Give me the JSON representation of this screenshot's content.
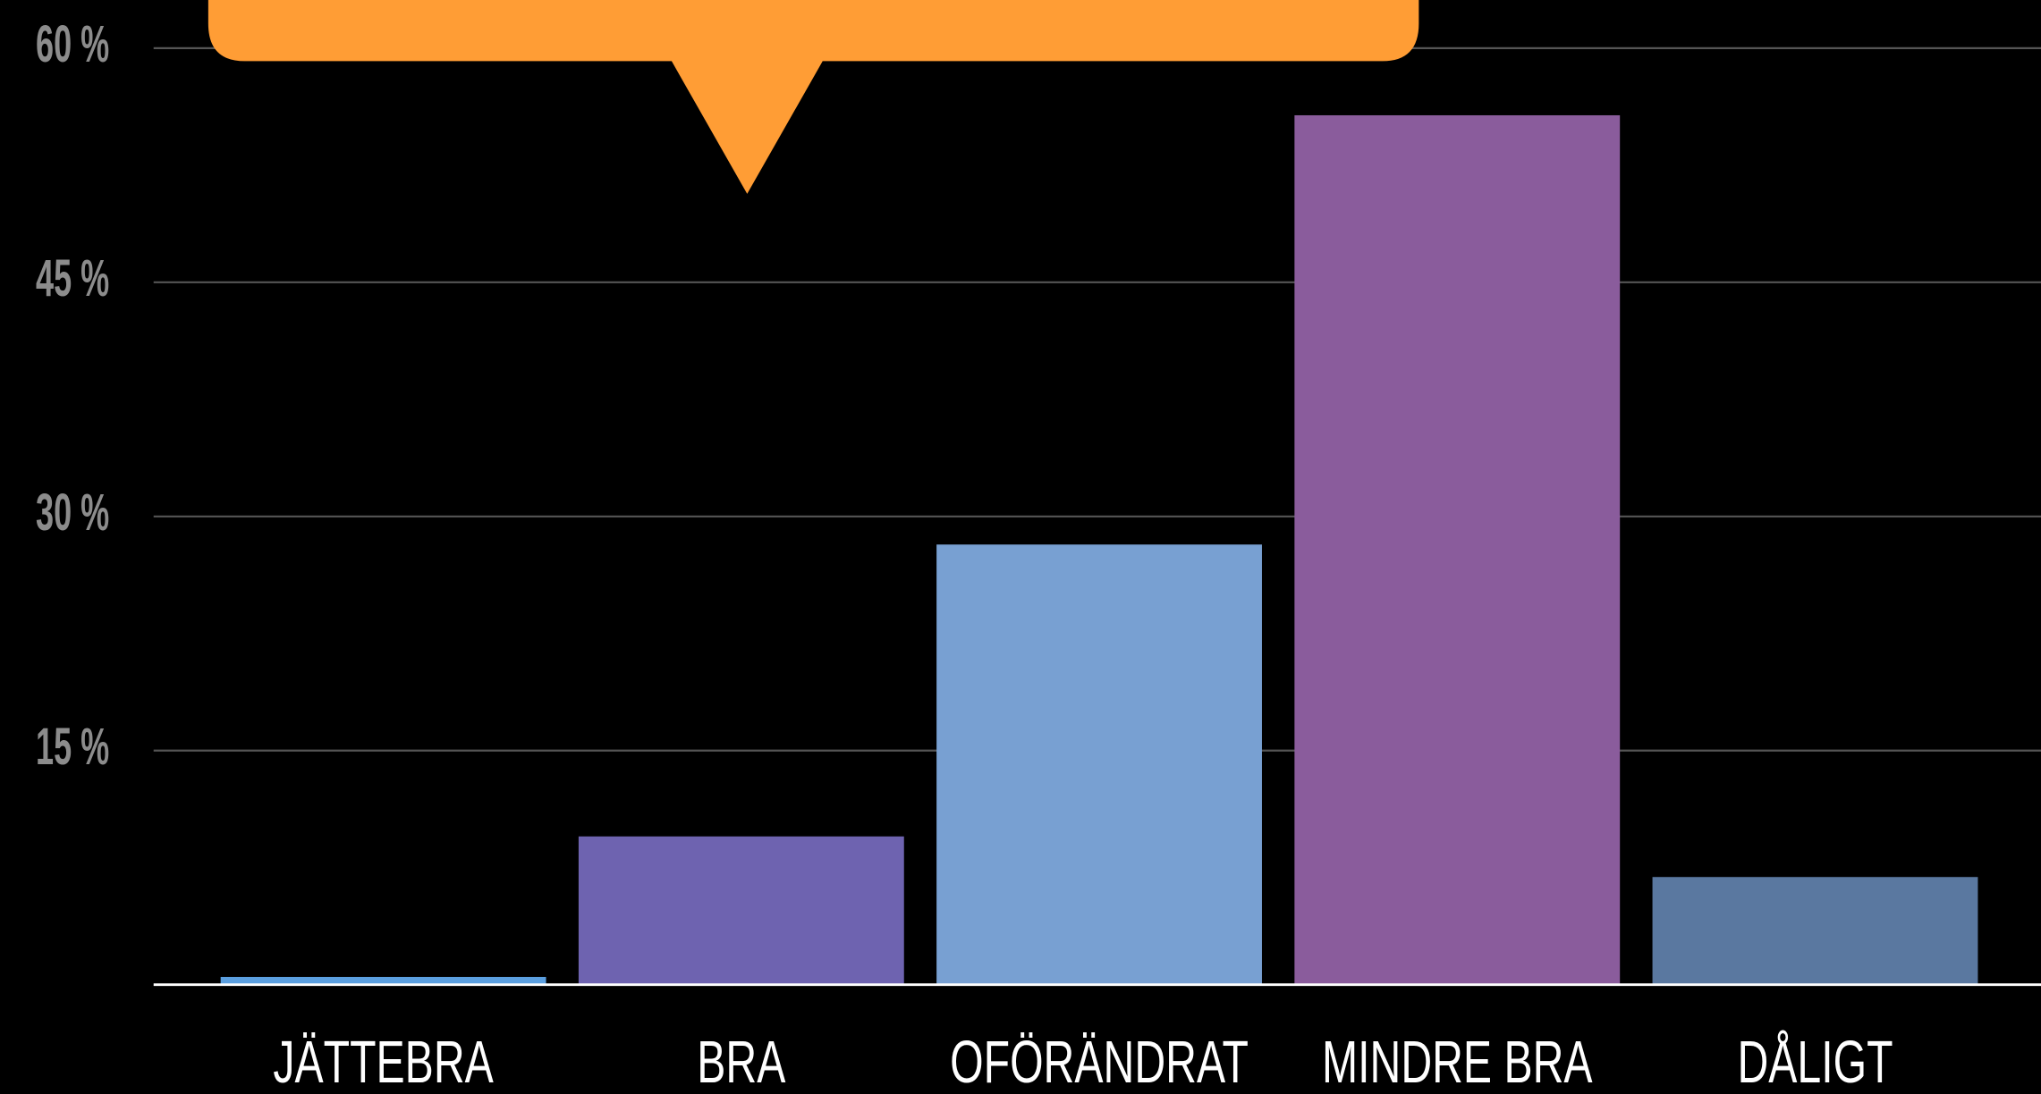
{
  "chart_data": {
    "type": "bar",
    "categories": [
      "JÄTTEBRA",
      "BRA",
      "OFÖRÄNDRAT",
      "MINDRE BRA",
      "DÅLIGT"
    ],
    "values": [
      0.5,
      9.5,
      28.2,
      55.7,
      6.9
    ],
    "colors": [
      "#5b9fe0",
      "#6e63b0",
      "#78a0d2",
      "#8a5c9c",
      "#5a78a0"
    ],
    "ylim": [
      0,
      60
    ],
    "yticks": [
      {
        "value": 15,
        "label": "15 %"
      },
      {
        "value": 30,
        "label": "30 %"
      },
      {
        "value": 45,
        "label": "45 %"
      },
      {
        "value": 60,
        "label": "60 %"
      }
    ],
    "grid": true
  }
}
